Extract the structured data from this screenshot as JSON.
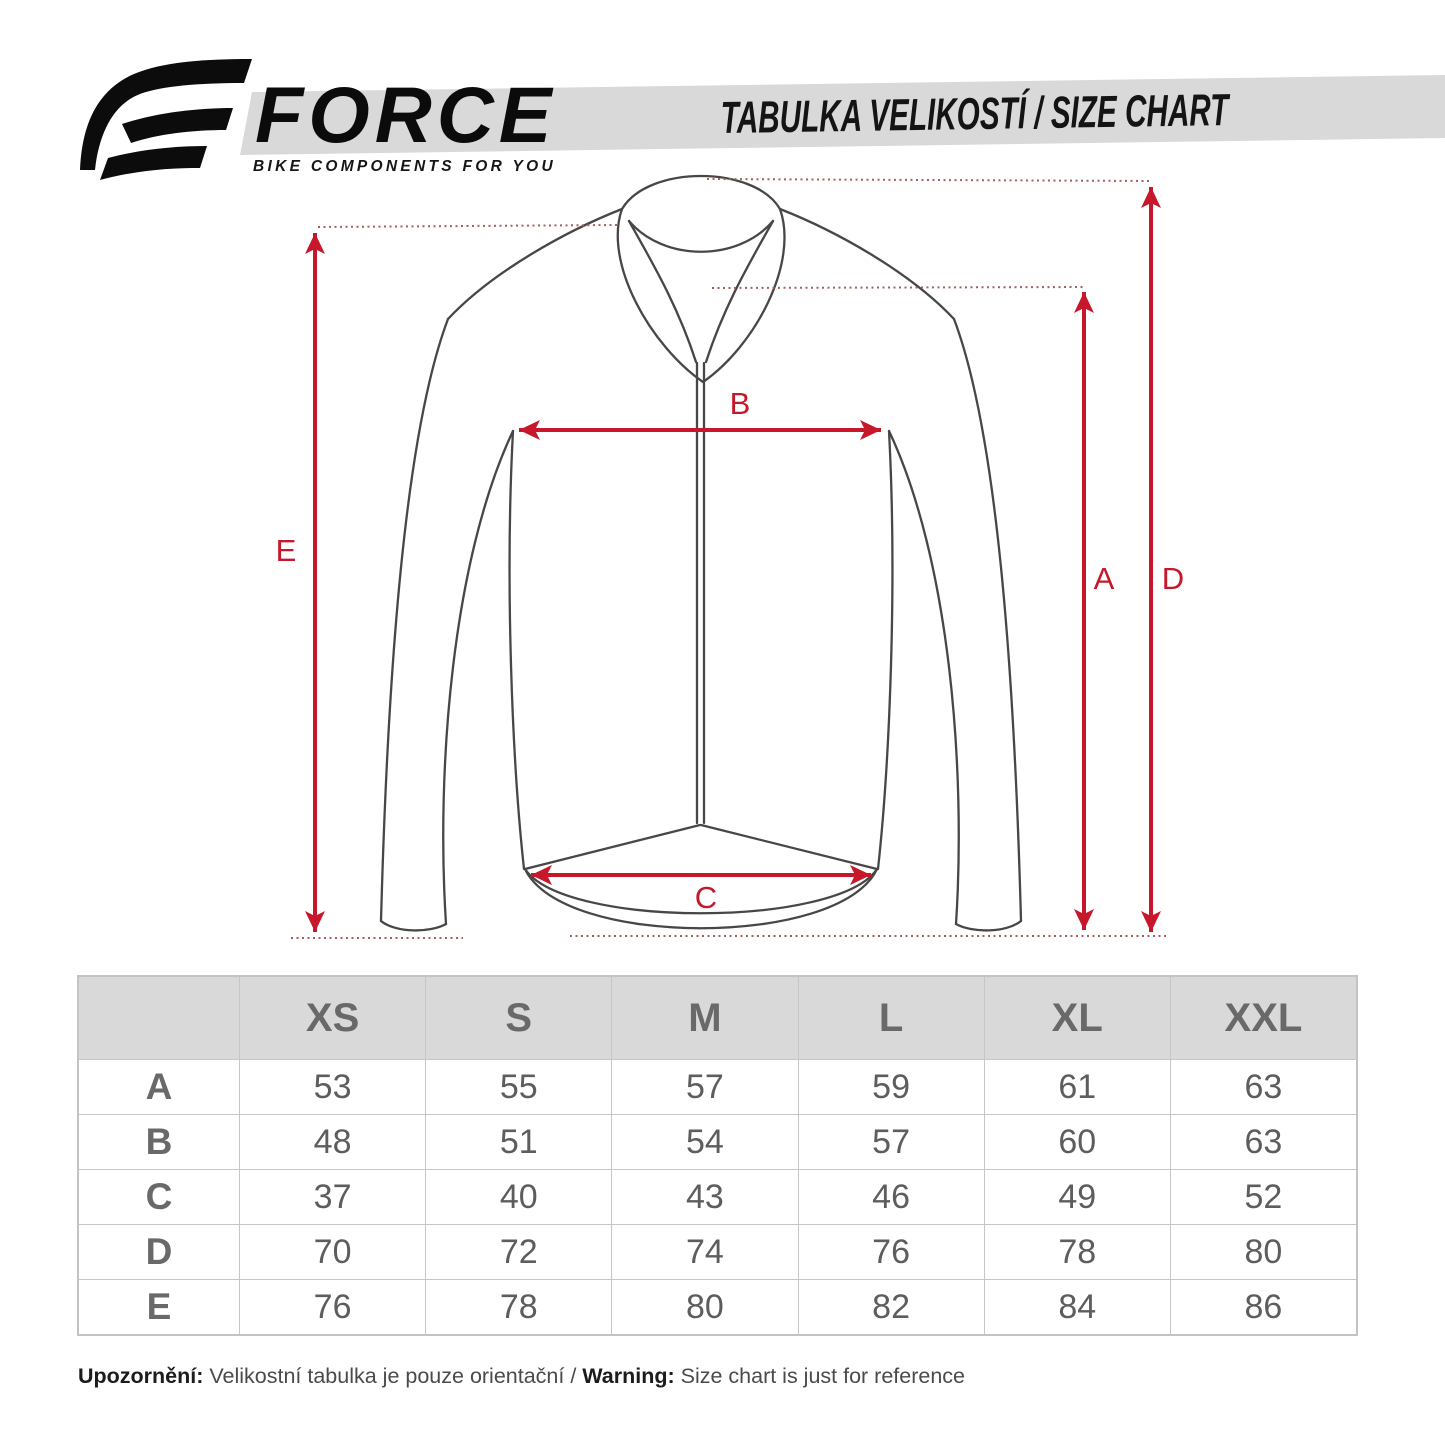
{
  "brand": {
    "name": "FORCE",
    "tagline": "BIKE COMPONENTS FOR YOU"
  },
  "header": {
    "title": "TABULKA VELIKOSTÍ / SIZE CHART"
  },
  "diagram": {
    "labels": {
      "a": "A",
      "b": "B",
      "c": "C",
      "d": "D",
      "e": "E"
    },
    "arrow_color": "#c6182a"
  },
  "size_table": {
    "columns": [
      "",
      "XS",
      "S",
      "M",
      "L",
      "XL",
      "XXL"
    ],
    "rows": [
      {
        "label": "A",
        "values": [
          "53",
          "55",
          "57",
          "59",
          "61",
          "63"
        ]
      },
      {
        "label": "B",
        "values": [
          "48",
          "51",
          "54",
          "57",
          "60",
          "63"
        ]
      },
      {
        "label": "C",
        "values": [
          "37",
          "40",
          "43",
          "46",
          "49",
          "52"
        ]
      },
      {
        "label": "D",
        "values": [
          "70",
          "72",
          "74",
          "76",
          "78",
          "80"
        ]
      },
      {
        "label": "E",
        "values": [
          "76",
          "78",
          "80",
          "82",
          "84",
          "86"
        ]
      }
    ]
  },
  "footer": {
    "note_cs_label": "Upozornění:",
    "note_cs_text": " Velikostní tabulka je pouze orientační / ",
    "note_en_label": "Warning:",
    "note_en_text": " Size chart is just for reference"
  },
  "colors": {
    "accent_red": "#c6182a",
    "band_gray": "#d9d9d9",
    "header_gray": "#d9d9d9",
    "grid_line": "#c6c6c6"
  }
}
